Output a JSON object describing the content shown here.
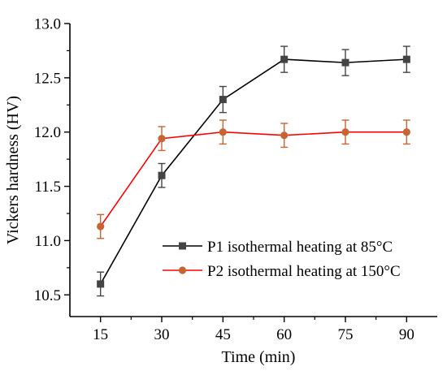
{
  "chart_data": {
    "type": "line",
    "xlabel": "Time (min)",
    "ylabel": "Vickers hardness (HV)",
    "x": [
      15,
      30,
      45,
      60,
      75,
      90
    ],
    "xticks": [
      "15",
      "30",
      "45",
      "60",
      "75",
      "90"
    ],
    "xlim": [
      7.5,
      97.5
    ],
    "ylim": [
      10.3,
      13.0
    ],
    "yticks": [
      "10.5",
      "11.0",
      "11.5",
      "12.0",
      "12.5",
      "13.0"
    ],
    "legend_position": "bottom-right",
    "grid": false,
    "series": [
      {
        "name": "P1 isothermal heating at 85°C",
        "color": "#000000",
        "marker_color": "#444444",
        "marker": "square",
        "values": [
          10.6,
          11.6,
          12.3,
          12.67,
          12.64,
          12.67
        ],
        "errors": [
          0.11,
          0.11,
          0.12,
          0.12,
          0.12,
          0.12
        ]
      },
      {
        "name": "P2 isothermal heating at 150°C",
        "color": "#ff0000",
        "marker_color": "#c86432",
        "marker": "circle",
        "values": [
          11.13,
          11.94,
          12.0,
          11.97,
          12.0,
          12.0
        ],
        "errors": [
          0.11,
          0.11,
          0.11,
          0.11,
          0.11,
          0.11
        ]
      }
    ]
  }
}
